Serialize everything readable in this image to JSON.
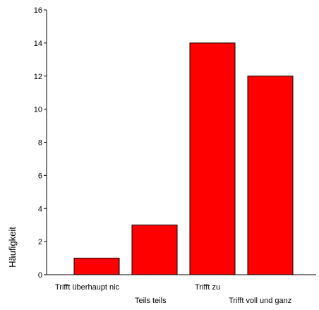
{
  "chart_data": {
    "type": "bar",
    "categories": [
      "Trifft überhaupt nic",
      "Teils teils",
      "Trifft zu",
      "Trifft voll und ganz"
    ],
    "values": [
      1,
      3,
      14,
      12
    ],
    "title": "",
    "xlabel": "",
    "ylabel": "Häufigkeit",
    "ylim": [
      0,
      16
    ],
    "yticks": [
      0,
      2,
      4,
      6,
      8,
      10,
      12,
      14,
      16
    ],
    "bar_color": "#ff0000",
    "grid": false,
    "legend": "none"
  }
}
